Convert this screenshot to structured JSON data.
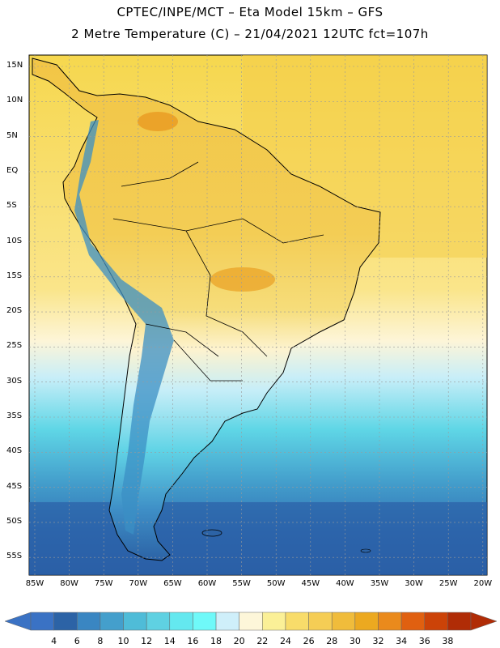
{
  "header": {
    "line1": "CPTEC/INPE/MCT –  Eta Model 15km – GFS",
    "line2": "2 Metre Temperature (C) – 21/04/2021 12UTC fct=107h"
  },
  "map": {
    "lat_labels": [
      "15N",
      "10N",
      "5N",
      "EQ",
      "5S",
      "10S",
      "15S",
      "20S",
      "25S",
      "30S",
      "35S",
      "40S",
      "45S",
      "50S",
      "55S"
    ],
    "lon_labels": [
      "85W",
      "80W",
      "75W",
      "70W",
      "65W",
      "60W",
      "55W",
      "50W",
      "45W",
      "40W",
      "35W",
      "30W",
      "25W",
      "20W"
    ],
    "region": "South America",
    "colors": {
      "ocean_north": "#f5d44a",
      "ocean_south": "#2b5fa6",
      "land_warm": "#f0bf3a",
      "andes_cold": "#3b8fc4"
    }
  },
  "colorbar": {
    "labels": [
      "4",
      "6",
      "8",
      "10",
      "12",
      "14",
      "16",
      "18",
      "20",
      "22",
      "24",
      "26",
      "28",
      "30",
      "32",
      "34",
      "36",
      "38"
    ],
    "colors": [
      "#3a72c4",
      "#2c63a6",
      "#3a86c2",
      "#449fcc",
      "#4fbcd8",
      "#5fd1e2",
      "#64e8ef",
      "#6ff9f9",
      "#cfeffa",
      "#fdf6d9",
      "#fbf097",
      "#f8dc6a",
      "#f5cd55",
      "#f0bc3b",
      "#eca920",
      "#ea8a1c",
      "#e06010",
      "#cc4308",
      "#b02c06"
    ]
  }
}
